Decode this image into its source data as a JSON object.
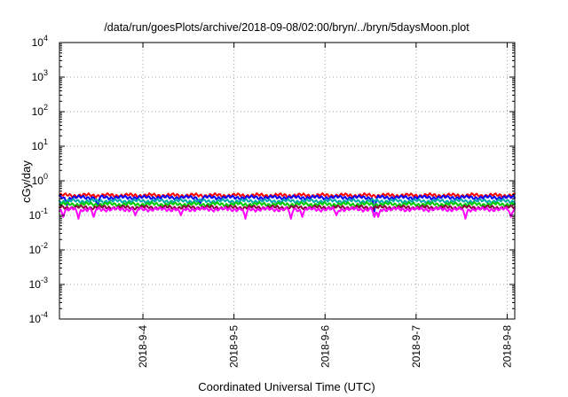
{
  "chart_data": {
    "type": "line",
    "title": "/data/run/goesPlots/archive/2018-09-08/02:00/bryn/../bryn/5daysMoon.plot",
    "xlabel": "Coordinated Universal Time (UTC)",
    "ylabel": "cGy/day",
    "y_scale": "log",
    "ylim": [
      0.0001,
      10000
    ],
    "y_ticks": [
      {
        "base": "10",
        "exp": "-4",
        "value": 0.0001
      },
      {
        "base": "10",
        "exp": "-3",
        "value": 0.001
      },
      {
        "base": "10",
        "exp": "-2",
        "value": 0.01
      },
      {
        "base": "10",
        "exp": "-1",
        "value": 0.1
      },
      {
        "base": "10",
        "exp": "0",
        "value": 1
      },
      {
        "base": "10",
        "exp": "1",
        "value": 10
      },
      {
        "base": "10",
        "exp": "2",
        "value": 100
      },
      {
        "base": "10",
        "exp": "3",
        "value": 1000
      },
      {
        "base": "10",
        "exp": "4",
        "value": 10000
      }
    ],
    "xlim": [
      "2018-09-03 02:00",
      "2018-09-08 02:00"
    ],
    "x_ticks": [
      {
        "label": "2018-9-4",
        "value": "2018-09-04"
      },
      {
        "label": "2018-9-5",
        "value": "2018-09-05"
      },
      {
        "label": "2018-9-6",
        "value": "2018-09-06"
      },
      {
        "label": "2018-9-7",
        "value": "2018-09-07"
      },
      {
        "label": "2018-9-8",
        "value": "2018-09-08"
      }
    ],
    "grid": true,
    "legend": "none",
    "series": [
      {
        "color": "#ff0000",
        "base": 0.38,
        "dips": []
      },
      {
        "color": "#0000ff",
        "base": 0.33,
        "dips": [
          {
            "t": "2018-09-03 04:00",
            "v": 0.2
          },
          {
            "t": "2018-09-03 12:00",
            "v": 0.18
          },
          {
            "t": "2018-09-04 15:00",
            "v": 0.2
          },
          {
            "t": "2018-09-06 13:00",
            "v": 0.13
          },
          {
            "t": "2018-09-06 14:00",
            "v": 0.45
          }
        ]
      },
      {
        "color": "#00aaaa",
        "base": 0.26,
        "dips": []
      },
      {
        "color": "#00cc00",
        "base": 0.21,
        "dips": []
      },
      {
        "color": "#8b0040",
        "base": 0.17,
        "dips": []
      },
      {
        "color": "#ff00ff",
        "base": 0.15,
        "dips": [
          {
            "t": "2018-09-03 03:00",
            "v": 0.09
          },
          {
            "t": "2018-09-03 07:00",
            "v": 0.08
          },
          {
            "t": "2018-09-03 11:00",
            "v": 0.09
          },
          {
            "t": "2018-09-03 22:00",
            "v": 0.1
          },
          {
            "t": "2018-09-04 10:00",
            "v": 0.1
          },
          {
            "t": "2018-09-05 03:00",
            "v": 0.08
          },
          {
            "t": "2018-09-05 15:00",
            "v": 0.08
          },
          {
            "t": "2018-09-05 18:00",
            "v": 0.09
          },
          {
            "t": "2018-09-06 03:00",
            "v": 0.1
          },
          {
            "t": "2018-09-06 13:00",
            "v": 0.09
          },
          {
            "t": "2018-09-06 14:00",
            "v": 0.09
          },
          {
            "t": "2018-09-07 13:00",
            "v": 0.08
          },
          {
            "t": "2018-09-08 01:00",
            "v": 0.09
          }
        ]
      }
    ]
  }
}
